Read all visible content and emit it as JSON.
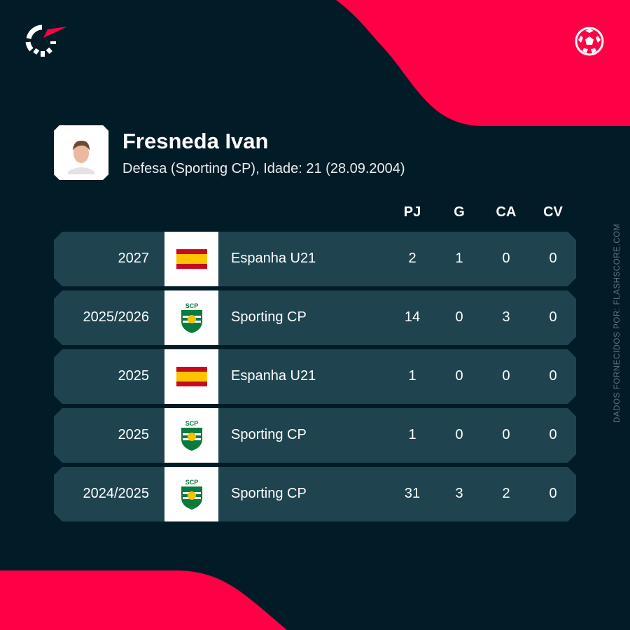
{
  "brand": {
    "accent": "#ff0046",
    "background": "#021c27",
    "row": "#1f4450"
  },
  "player": {
    "name": "Fresneda Ivan",
    "details": "Defesa (Sporting CP), Idade: 21 (28.09.2004)"
  },
  "columns": [
    "PJ",
    "G",
    "CA",
    "CV"
  ],
  "rows": [
    {
      "season": "2027",
      "team": "Espanha U21",
      "logo": "spain-flag",
      "pj": "2",
      "g": "1",
      "ca": "0",
      "cv": "0"
    },
    {
      "season": "2025/2026",
      "team": "Sporting CP",
      "logo": "sporting-crest",
      "pj": "14",
      "g": "0",
      "ca": "3",
      "cv": "0"
    },
    {
      "season": "2025",
      "team": "Espanha U21",
      "logo": "spain-flag",
      "pj": "1",
      "g": "0",
      "ca": "0",
      "cv": "0"
    },
    {
      "season": "2025",
      "team": "Sporting CP",
      "logo": "sporting-crest",
      "pj": "1",
      "g": "0",
      "ca": "0",
      "cv": "0"
    },
    {
      "season": "2024/2025",
      "team": "Sporting CP",
      "logo": "sporting-crest",
      "pj": "31",
      "g": "3",
      "ca": "2",
      "cv": "0"
    }
  ],
  "source": "DADOS FORNECIDOS POR: FLASHSCORE.COM",
  "crest_text": "SCP"
}
